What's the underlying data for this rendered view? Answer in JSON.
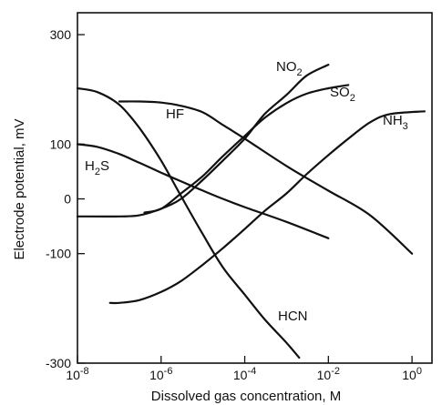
{
  "chart_data": {
    "type": "line",
    "title": "",
    "xlabel": "Dissolved gas concentration, M",
    "ylabel": "Electrode potential, mV",
    "x_scale": "log",
    "xlim": [
      1e-08,
      3.0
    ],
    "ylim": [
      -300,
      340
    ],
    "x_ticks": [
      {
        "value": 1e-08,
        "base": "10",
        "exp": "-8"
      },
      {
        "value": 1e-06,
        "base": "10",
        "exp": "-6"
      },
      {
        "value": 0.0001,
        "base": "10",
        "exp": "-4"
      },
      {
        "value": 0.01,
        "base": "10",
        "exp": "-2"
      },
      {
        "value": 1.0,
        "base": "10",
        "exp": "0"
      }
    ],
    "y_ticks": [
      {
        "value": 300,
        "label": "300"
      },
      {
        "value": 100,
        "label": "100"
      },
      {
        "value": 0,
        "label": "0"
      },
      {
        "value": -100,
        "label": "-100"
      },
      {
        "value": -300,
        "label": "-300"
      }
    ],
    "grid": false,
    "legend": "none",
    "series": [
      {
        "name": "HF",
        "name_main": "HF",
        "name_sub": "",
        "x": [
          1e-07,
          3e-07,
          1e-06,
          3e-06,
          1e-05,
          3e-05,
          0.0001,
          0.001,
          0.01,
          0.1,
          1.0
        ],
        "y": [
          178,
          178,
          176,
          170,
          158,
          135,
          110,
          60,
          15,
          -30,
          -100
        ]
      },
      {
        "name": "NO2",
        "name_main": "NO",
        "name_sub": "2",
        "x": [
          1e-08,
          1e-07,
          3e-07,
          1e-06,
          3e-06,
          1e-05,
          3e-05,
          0.0001,
          0.0003,
          0.001,
          0.003,
          0.01
        ],
        "y": [
          -32,
          -32,
          -30,
          -18,
          0,
          35,
          70,
          110,
          155,
          190,
          225,
          245
        ]
      },
      {
        "name": "SO2",
        "name_main": "SO",
        "name_sub": "2",
        "x": [
          4e-07,
          1e-06,
          3e-06,
          1e-05,
          3e-05,
          0.0001,
          0.0003,
          0.001,
          0.003,
          0.01,
          0.03
        ],
        "y": [
          -25,
          -18,
          10,
          42,
          78,
          115,
          148,
          175,
          192,
          202,
          208
        ]
      },
      {
        "name": "NH3",
        "name_main": "NH",
        "name_sub": "3",
        "x": [
          6e-08,
          1e-07,
          3e-07,
          1e-06,
          3e-06,
          1e-05,
          3e-05,
          0.0001,
          0.0003,
          0.001,
          0.003,
          0.01,
          0.03,
          0.1,
          0.3,
          2.0
        ],
        "y": [
          -190,
          -190,
          -185,
          -170,
          -150,
          -120,
          -90,
          -55,
          -22,
          10,
          45,
          80,
          110,
          140,
          155,
          160
        ]
      },
      {
        "name": "H2S",
        "name_main": "H",
        "name_sub": "2",
        "name_tail": "S",
        "x": [
          1e-08,
          3e-08,
          1e-07,
          3e-07,
          1e-06,
          3e-06,
          1e-05,
          3e-05,
          0.0001,
          0.001,
          0.01
        ],
        "y": [
          100,
          95,
          82,
          66,
          48,
          32,
          15,
          0,
          -15,
          -42,
          -72
        ]
      },
      {
        "name": "HCN",
        "name_main": "HCN",
        "name_sub": "",
        "x": [
          1e-08,
          3e-08,
          1e-07,
          3e-07,
          1e-06,
          3e-06,
          1e-05,
          3e-05,
          0.0001,
          0.0003,
          0.001,
          0.002
        ],
        "y": [
          202,
          195,
          172,
          130,
          70,
          5,
          -65,
          -125,
          -175,
          -220,
          -263,
          -290
        ]
      }
    ]
  }
}
